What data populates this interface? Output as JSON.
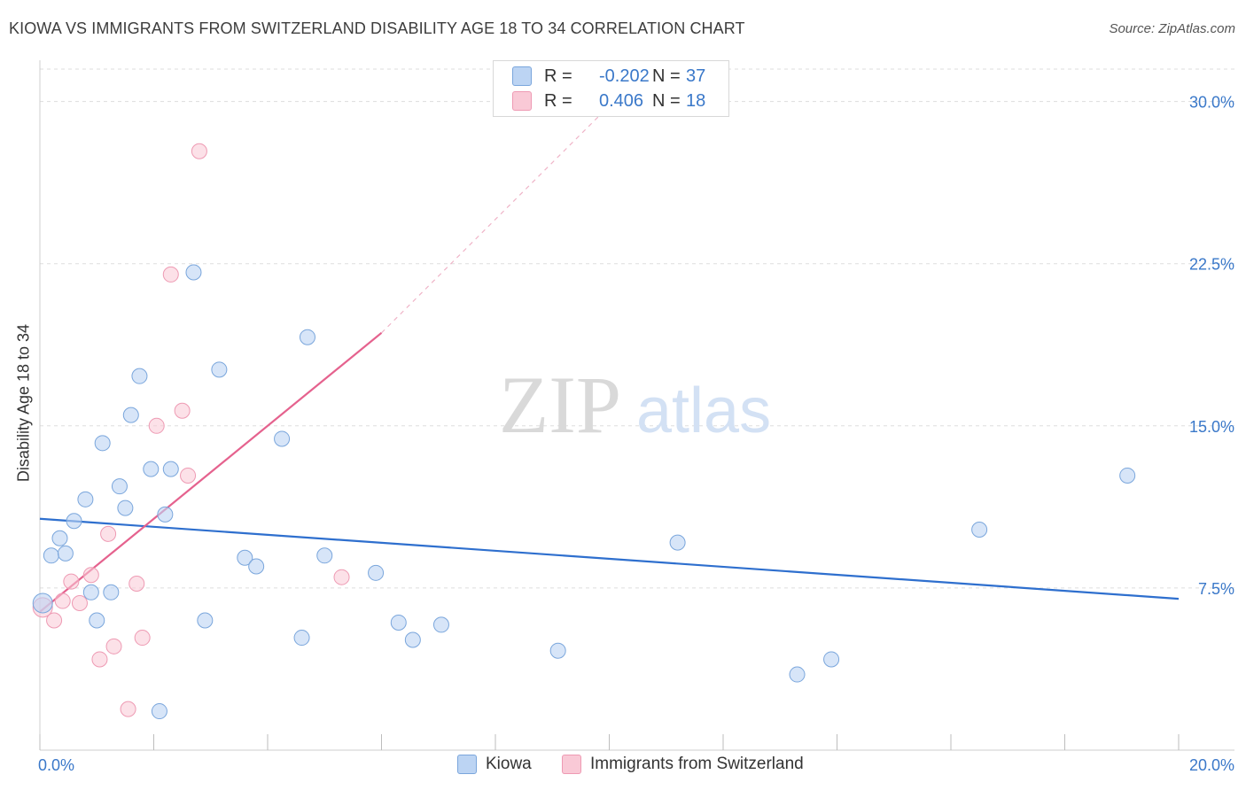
{
  "header": {
    "title": "KIOWA VS IMMIGRANTS FROM SWITZERLAND DISABILITY AGE 18 TO 34 CORRELATION CHART",
    "source": "Source: ZipAtlas.com"
  },
  "watermark": {
    "part1": "ZIP",
    "part2": "atlas"
  },
  "legend": {
    "rows": [
      {
        "r_label": "R =",
        "r_value": "-0.202",
        "n_label": "N =",
        "n_value": "37"
      },
      {
        "r_label": "R =",
        "r_value": "0.406",
        "n_label": "N =",
        "n_value": "18"
      }
    ]
  },
  "colors": {
    "kiowa_fill": "#bcd4f3",
    "kiowa_stroke": "#7aa6dc",
    "kiowa_line": "#2e6fce",
    "swiss_fill": "#f9c9d6",
    "swiss_stroke": "#ee9ab3",
    "swiss_line": "#e5628e",
    "tick_text": "#3a78c9",
    "grid": "#dddddd"
  },
  "chart_data": {
    "type": "scatter",
    "title": "KIOWA VS IMMIGRANTS FROM SWITZERLAND DISABILITY AGE 18 TO 34 CORRELATION CHART",
    "xlabel": "",
    "ylabel": "Disability Age 18 to 34",
    "xlim": [
      0,
      20
    ],
    "ylim": [
      0,
      31.5
    ],
    "x_ticks": [
      0,
      20
    ],
    "x_tick_labels": [
      "0.0%",
      "20.0%"
    ],
    "y_ticks": [
      7.5,
      15,
      22.5,
      30
    ],
    "y_tick_labels": [
      "7.5%",
      "15.0%",
      "22.5%",
      "30.0%"
    ],
    "grid": true,
    "legend_position": "top-center",
    "series": [
      {
        "name": "Kiowa",
        "r": -0.202,
        "n": 37,
        "points": [
          [
            0.05,
            6.8
          ],
          [
            0.2,
            9.0
          ],
          [
            0.35,
            9.8
          ],
          [
            0.45,
            9.1
          ],
          [
            0.6,
            10.6
          ],
          [
            0.8,
            11.6
          ],
          [
            0.9,
            7.3
          ],
          [
            1.0,
            6.0
          ],
          [
            1.1,
            14.2
          ],
          [
            1.25,
            7.3
          ],
          [
            1.4,
            12.2
          ],
          [
            1.5,
            11.2
          ],
          [
            1.6,
            15.5
          ],
          [
            1.75,
            17.3
          ],
          [
            1.95,
            13.0
          ],
          [
            2.1,
            1.8
          ],
          [
            2.2,
            10.9
          ],
          [
            2.3,
            13.0
          ],
          [
            2.7,
            22.1
          ],
          [
            2.9,
            6.0
          ],
          [
            3.15,
            17.6
          ],
          [
            3.6,
            8.9
          ],
          [
            3.8,
            8.5
          ],
          [
            4.25,
            14.4
          ],
          [
            4.6,
            5.2
          ],
          [
            4.7,
            19.1
          ],
          [
            5.0,
            9.0
          ],
          [
            5.9,
            8.2
          ],
          [
            6.3,
            5.9
          ],
          [
            6.55,
            5.1
          ],
          [
            7.05,
            5.8
          ],
          [
            9.1,
            4.6
          ],
          [
            11.2,
            9.6
          ],
          [
            13.3,
            3.5
          ],
          [
            13.9,
            4.2
          ],
          [
            16.5,
            10.2
          ],
          [
            19.1,
            12.7
          ]
        ],
        "trend": {
          "x": [
            0,
            20
          ],
          "y": [
            10.7,
            7.0
          ]
        }
      },
      {
        "name": "Immigrants from Switzerland",
        "r": 0.406,
        "n": 18,
        "points": [
          [
            0.05,
            6.6
          ],
          [
            0.25,
            6.0
          ],
          [
            0.4,
            6.9
          ],
          [
            0.55,
            7.8
          ],
          [
            0.7,
            6.8
          ],
          [
            0.9,
            8.1
          ],
          [
            1.05,
            4.2
          ],
          [
            1.2,
            10.0
          ],
          [
            1.3,
            4.8
          ],
          [
            1.55,
            1.9
          ],
          [
            1.7,
            7.7
          ],
          [
            1.8,
            5.2
          ],
          [
            2.05,
            15.0
          ],
          [
            2.3,
            22.0
          ],
          [
            2.5,
            15.7
          ],
          [
            2.6,
            12.7
          ],
          [
            2.8,
            27.7
          ],
          [
            5.3,
            8.0
          ]
        ],
        "trend": {
          "x": [
            0,
            6.0
          ],
          "y": [
            6.4,
            19.3
          ]
        },
        "trend_dashed_extension": {
          "x": [
            6.0,
            10.0
          ],
          "y": [
            19.3,
            29.8
          ]
        }
      }
    ]
  },
  "bottom_legend": {
    "items": [
      {
        "label": "Kiowa"
      },
      {
        "label": "Immigrants from Switzerland"
      }
    ]
  }
}
